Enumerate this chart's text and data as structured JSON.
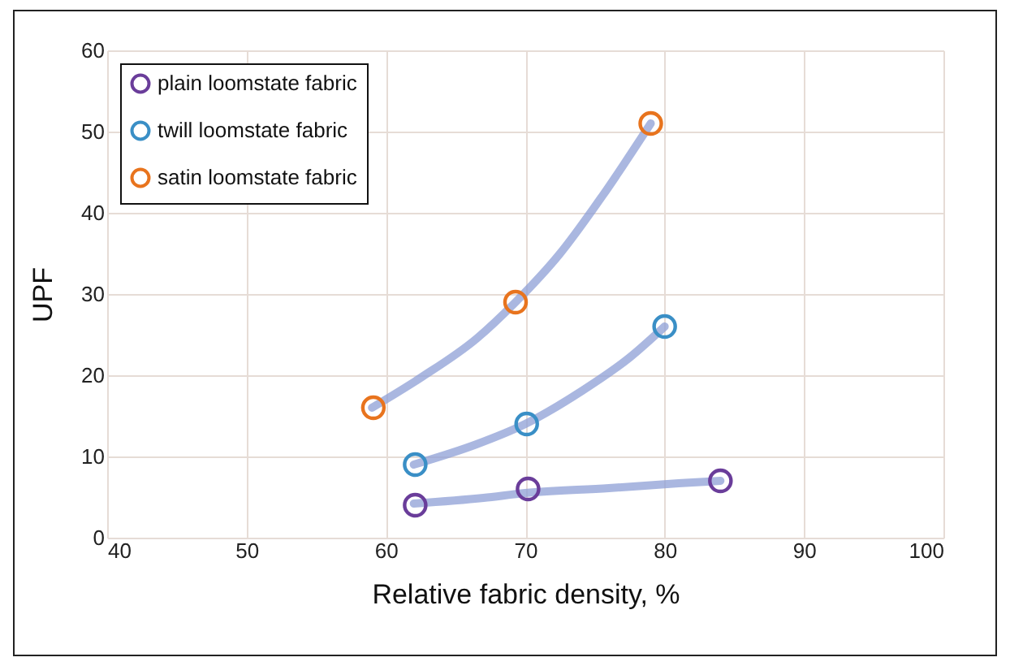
{
  "chart_data": {
    "type": "scatter",
    "xlabel": "Relative fabric density, %",
    "ylabel": "UPF",
    "xlim": [
      40,
      100
    ],
    "xticks": [
      40,
      50,
      60,
      70,
      80,
      90,
      100
    ],
    "ylim": [
      0,
      60
    ],
    "yticks": [
      0,
      10,
      20,
      30,
      40,
      50,
      60
    ],
    "grid": true,
    "legend": "top left",
    "marker": "circle",
    "series": [
      {
        "type": "line",
        "marker": "none",
        "color": "#8e9fd6",
        "x": [
          62,
          67,
          70,
          76,
          81,
          84
        ],
        "values": [
          4.2,
          4.9,
          5.5,
          6.1,
          6.7,
          7
        ]
      },
      {
        "type": "line",
        "marker": "none",
        "color": "#8e9fd6",
        "x": [
          62,
          66.5,
          70,
          74,
          77.5,
          80
        ],
        "values": [
          9,
          11.5,
          14,
          18,
          22.2,
          26
        ]
      },
      {
        "type": "line",
        "marker": "none",
        "color": "#8e9fd6",
        "x": [
          59,
          62.5,
          66.5,
          69.3,
          72.5,
          75.5,
          79
        ],
        "values": [
          16,
          19.7,
          24.5,
          29,
          35,
          42,
          51
        ]
      },
      {
        "name": "plain loomstate fabric",
        "color": "#6a3d9a",
        "x": [
          62.1,
          70.2,
          84
        ],
        "values": [
          4,
          6,
          7
        ]
      },
      {
        "name": "twill loomstate fabric",
        "color": "#3a8fc6",
        "x": [
          62.1,
          70.1,
          80
        ],
        "values": [
          9,
          14,
          26
        ]
      },
      {
        "name": "satin loomstate fabric",
        "color": "#e8741e",
        "x": [
          59.1,
          69.3,
          79
        ],
        "values": [
          16,
          29,
          51
        ]
      }
    ]
  }
}
